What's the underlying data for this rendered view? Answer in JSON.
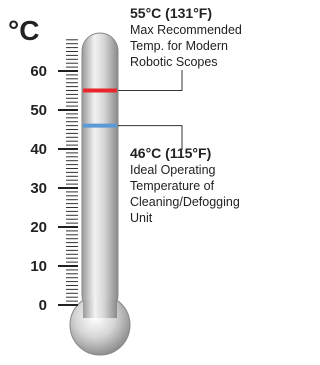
{
  "unit": "°C",
  "scale": {
    "range": [
      0,
      68
    ],
    "ticks": [
      0,
      10,
      20,
      30,
      40,
      50,
      60
    ]
  },
  "markers": [
    {
      "value": 55,
      "color": "#e8262b",
      "title": "55°C (131°F)",
      "lines": [
        "Max Recommended",
        "Temp. for Modern",
        "Robotic Scopes"
      ]
    },
    {
      "value": 46,
      "color": "#5b9bd5",
      "title": "46°C (115°F)",
      "lines": [
        "Ideal Operating",
        "Temperature of",
        "Cleaning/Defogging",
        "Unit"
      ]
    }
  ]
}
